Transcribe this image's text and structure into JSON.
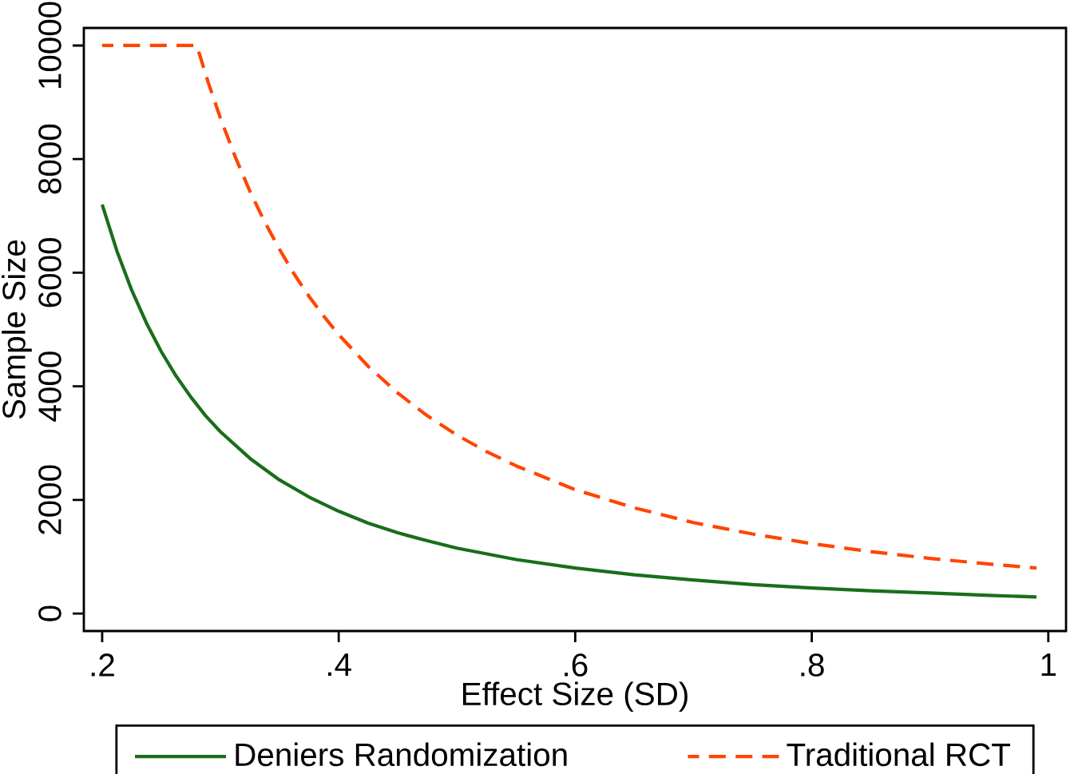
{
  "chart_data": {
    "type": "line",
    "xlabel": "Effect Size (SD)",
    "ylabel": "Sample Size",
    "xlim": [
      0.1845,
      1.015
    ],
    "ylim": [
      -309,
      10309
    ],
    "xticks": [
      {
        "value": 0.2,
        "label": ".2"
      },
      {
        "value": 0.4,
        "label": ".4"
      },
      {
        "value": 0.6,
        "label": ".6"
      },
      {
        "value": 0.8,
        "label": ".8"
      },
      1
    ],
    "yticks": [
      0,
      2000,
      4000,
      6000,
      8000,
      10000
    ],
    "grid": false,
    "legend": "bottom",
    "marker": "none",
    "series": [
      {
        "name": "Deniers Randomization",
        "color": "#1a6e1a",
        "line_style": "solid",
        "x": [
          0.2,
          0.2125,
          0.225,
          0.2375,
          0.25,
          0.2625,
          0.275,
          0.2875,
          0.3,
          0.325,
          0.35,
          0.375,
          0.4,
          0.425,
          0.45,
          0.475,
          0.5,
          0.55,
          0.6,
          0.65,
          0.7,
          0.75,
          0.8,
          0.85,
          0.9,
          0.95,
          0.99
        ],
        "values": [
          7200,
          6380,
          5690,
          5110,
          4610,
          4180,
          3810,
          3480,
          3200,
          2730,
          2350,
          2050,
          1800,
          1590,
          1420,
          1280,
          1150,
          950,
          800,
          680,
          590,
          510,
          450,
          400,
          360,
          320,
          290
        ]
      },
      {
        "name": "Traditional RCT",
        "color": "#ff4500",
        "line_style": "dashed",
        "x": [
          0.2,
          0.28,
          0.29,
          0.3,
          0.3125,
          0.325,
          0.3375,
          0.35,
          0.3625,
          0.375,
          0.3875,
          0.4,
          0.425,
          0.45,
          0.475,
          0.5,
          0.525,
          0.55,
          0.6,
          0.65,
          0.7,
          0.75,
          0.8,
          0.85,
          0.9,
          0.95,
          0.99
        ],
        "values": [
          10000,
          10000,
          9330,
          8720,
          8040,
          7430,
          6890,
          6410,
          5970,
          5580,
          5230,
          4910,
          4350,
          3880,
          3480,
          3140,
          2850,
          2600,
          2180,
          1860,
          1600,
          1400,
          1230,
          1090,
          970,
          870,
          800
        ]
      }
    ]
  }
}
